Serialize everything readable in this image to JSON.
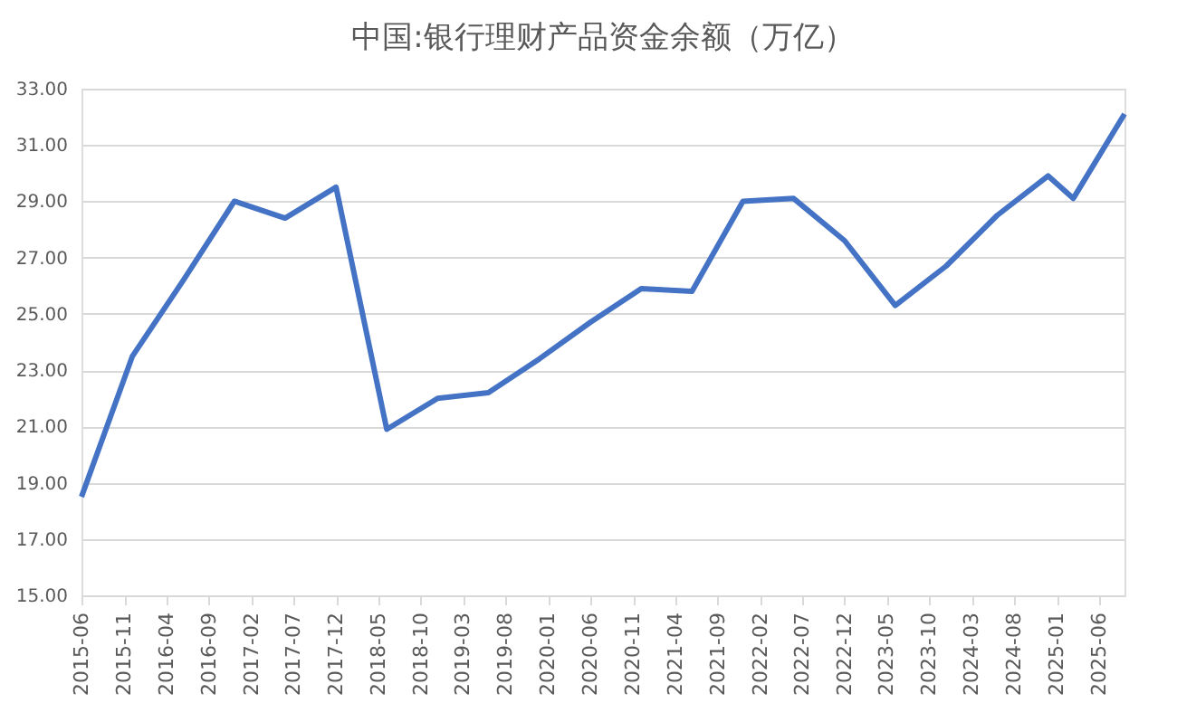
{
  "chart_data": {
    "type": "line",
    "title": "中国:银行理财产品资金余额（万亿）",
    "x": [
      "2015-06",
      "2015-12",
      "2016-06",
      "2016-12",
      "2017-06",
      "2017-12",
      "2018-06",
      "2018-12",
      "2019-06",
      "2019-12",
      "2020-06",
      "2020-12",
      "2021-06",
      "2021-12",
      "2022-06",
      "2022-12",
      "2023-06",
      "2023-12",
      "2024-06",
      "2024-12",
      "2025-03",
      "2025-09"
    ],
    "series": [
      {
        "color": "#4472c4",
        "values": [
          18.5,
          23.5,
          26.2,
          29.0,
          28.4,
          29.5,
          20.9,
          22.0,
          22.2,
          23.4,
          24.7,
          25.9,
          25.8,
          29.0,
          29.1,
          27.6,
          25.3,
          26.7,
          28.5,
          29.9,
          29.1,
          32.1
        ]
      }
    ],
    "xlim": [
      "2015-06",
      "2025-09"
    ],
    "xticks": [
      {
        "value": "2015-06",
        "label": "2015-06"
      },
      {
        "value": "2015-11",
        "label": "2015-11"
      },
      {
        "value": "2016-04",
        "label": "2016-04"
      },
      {
        "value": "2016-09",
        "label": "2016-09"
      },
      {
        "value": "2017-02",
        "label": "2017-02"
      },
      {
        "value": "2017-07",
        "label": "2017-07"
      },
      {
        "value": "2017-12",
        "label": "2017-12"
      },
      {
        "value": "2018-05",
        "label": "2018-05"
      },
      {
        "value": "2018-10",
        "label": "2018-10"
      },
      {
        "value": "2019-03",
        "label": "2019-03"
      },
      {
        "value": "2019-08",
        "label": "2019-08"
      },
      {
        "value": "2020-01",
        "label": "2020-01"
      },
      {
        "value": "2020-06",
        "label": "2020-06"
      },
      {
        "value": "2020-11",
        "label": "2020-11"
      },
      {
        "value": "2021-04",
        "label": "2021-04"
      },
      {
        "value": "2021-09",
        "label": "2021-09"
      },
      {
        "value": "2022-02",
        "label": "2022-02"
      },
      {
        "value": "2022-07",
        "label": "2022-07"
      },
      {
        "value": "2022-12",
        "label": "2022-12"
      },
      {
        "value": "2023-05",
        "label": "2023-05"
      },
      {
        "value": "2023-10",
        "label": "2023-10"
      },
      {
        "value": "2024-03",
        "label": "2024-03"
      },
      {
        "value": "2024-08",
        "label": "2024-08"
      },
      {
        "value": "2025-01",
        "label": "2025-01"
      },
      {
        "value": "2025-06",
        "label": "2025-06"
      }
    ],
    "ylim": [
      15,
      33
    ],
    "yticks": [
      {
        "value": 15,
        "label": "15.00"
      },
      {
        "value": 17,
        "label": "17.00"
      },
      {
        "value": 19,
        "label": "19.00"
      },
      {
        "value": 21,
        "label": "21.00"
      },
      {
        "value": 23,
        "label": "23.00"
      },
      {
        "value": 25,
        "label": "25.00"
      },
      {
        "value": 27,
        "label": "27.00"
      },
      {
        "value": 29,
        "label": "29.00"
      },
      {
        "value": 31,
        "label": "31.00"
      },
      {
        "value": 33,
        "label": "33.00"
      }
    ],
    "grid": "y",
    "marker": "none",
    "line_style": "solid"
  }
}
